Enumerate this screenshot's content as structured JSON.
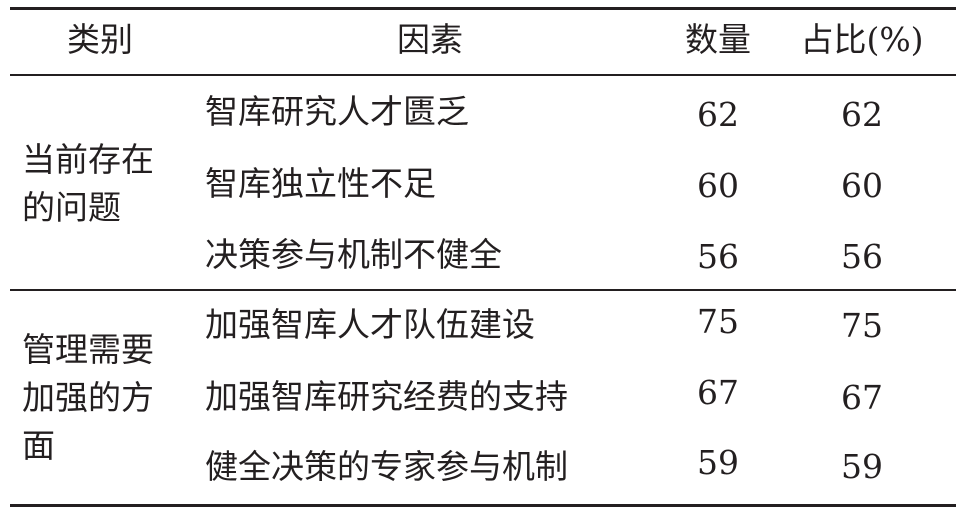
{
  "header": {
    "category": "类别",
    "factor": "因素",
    "count": "数量",
    "percent": "占比(%)"
  },
  "groups": [
    {
      "category": "当前存在的问题",
      "rows": [
        {
          "factor": "智库研究人才匮乏",
          "count": "62",
          "percent": "62"
        },
        {
          "factor": "智库独立性不足",
          "count": "60",
          "percent": "60"
        },
        {
          "factor": "决策参与机制不健全",
          "count": "56",
          "percent": "56"
        }
      ]
    },
    {
      "category": "管理需要加强的方面",
      "rows": [
        {
          "factor": "加强智库人才队伍建设",
          "count": "75",
          "percent": "75"
        },
        {
          "factor": "加强智库研究经费的支持",
          "count": "67",
          "percent": "67"
        },
        {
          "factor": "健全决策的专家参与机制",
          "count": "59",
          "percent": "59"
        }
      ]
    }
  ]
}
